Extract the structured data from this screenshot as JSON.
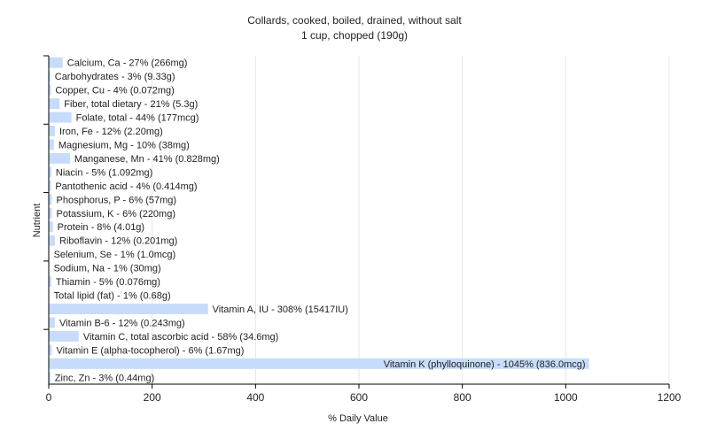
{
  "chart_data": {
    "type": "bar",
    "orientation": "horizontal",
    "title": "Collards, cooked, boiled, drained, without salt",
    "subtitle": "1 cup, chopped (190g)",
    "xlabel": "% Daily Value",
    "ylabel": "Nutrient",
    "xlim": [
      0,
      1200
    ],
    "xticks": [
      0,
      200,
      400,
      600,
      800,
      1000,
      1200
    ],
    "xtick_labels": [
      "0",
      "200",
      "400",
      "600",
      "800",
      "1000",
      "1200"
    ],
    "grid": "vertical",
    "legend": "none",
    "bar_color": "#c6dcfa",
    "categories": [
      "Calcium, Ca",
      "Carbohydrates",
      "Copper, Cu",
      "Fiber, total dietary",
      "Folate, total",
      "Iron, Fe",
      "Magnesium, Mg",
      "Manganese, Mn",
      "Niacin",
      "Pantothenic acid",
      "Phosphorus, P",
      "Potassium, K",
      "Protein",
      "Riboflavin",
      "Selenium, Se",
      "Sodium, Na",
      "Thiamin",
      "Total lipid (fat)",
      "Vitamin A, IU",
      "Vitamin B-6",
      "Vitamin C, total ascorbic acid",
      "Vitamin E (alpha-tocopherol)",
      "Vitamin K (phylloquinone)",
      "Zinc, Zn"
    ],
    "values": [
      27,
      3,
      4,
      21,
      44,
      12,
      10,
      41,
      5,
      4,
      6,
      6,
      8,
      12,
      1,
      1,
      5,
      1,
      308,
      12,
      58,
      6,
      1045,
      3
    ],
    "labels": [
      "Calcium, Ca - 27% (266mg)",
      "Carbohydrates - 3% (9.33g)",
      "Copper, Cu - 4% (0.072mg)",
      "Fiber, total dietary - 21% (5.3g)",
      "Folate, total - 44% (177mcg)",
      "Iron, Fe - 12% (2.20mg)",
      "Magnesium, Mg - 10% (38mg)",
      "Manganese, Mn - 41% (0.828mg)",
      "Niacin - 5% (1.092mg)",
      "Pantothenic acid - 4% (0.414mg)",
      "Phosphorus, P - 6% (57mg)",
      "Potassium, K - 6% (220mg)",
      "Protein - 8% (4.01g)",
      "Riboflavin - 12% (0.201mg)",
      "Selenium, Se - 1% (1.0mcg)",
      "Sodium, Na - 1% (30mg)",
      "Thiamin - 5% (0.076mg)",
      "Total lipid (fat) - 1% (0.68g)",
      "Vitamin A, IU - 308% (15417IU)",
      "Vitamin B-6 - 12% (0.243mg)",
      "Vitamin C, total ascorbic acid - 58% (34.6mg)",
      "Vitamin E (alpha-tocopherol) - 6% (1.67mg)",
      "Vitamin K (phylloquinone) - 1045% (836.0mcg)",
      "Zinc, Zn - 3% (0.44mg)"
    ]
  }
}
